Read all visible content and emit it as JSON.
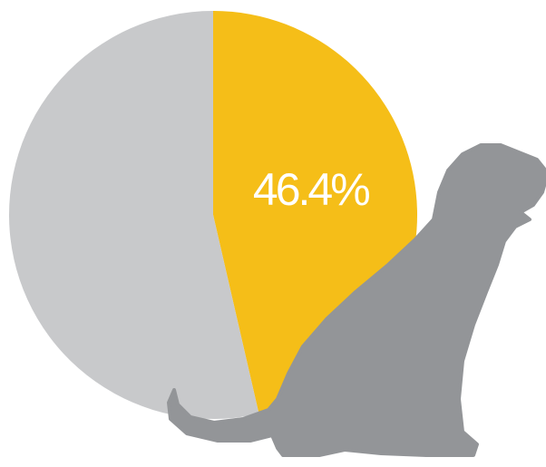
{
  "chart_data": {
    "type": "pie",
    "categories": [
      null,
      null
    ],
    "values": [
      46.4,
      53.6
    ],
    "value_labels": [
      "46.4%",
      null
    ],
    "colors": [
      "#f5be18",
      "#c8c9cb"
    ]
  }
}
